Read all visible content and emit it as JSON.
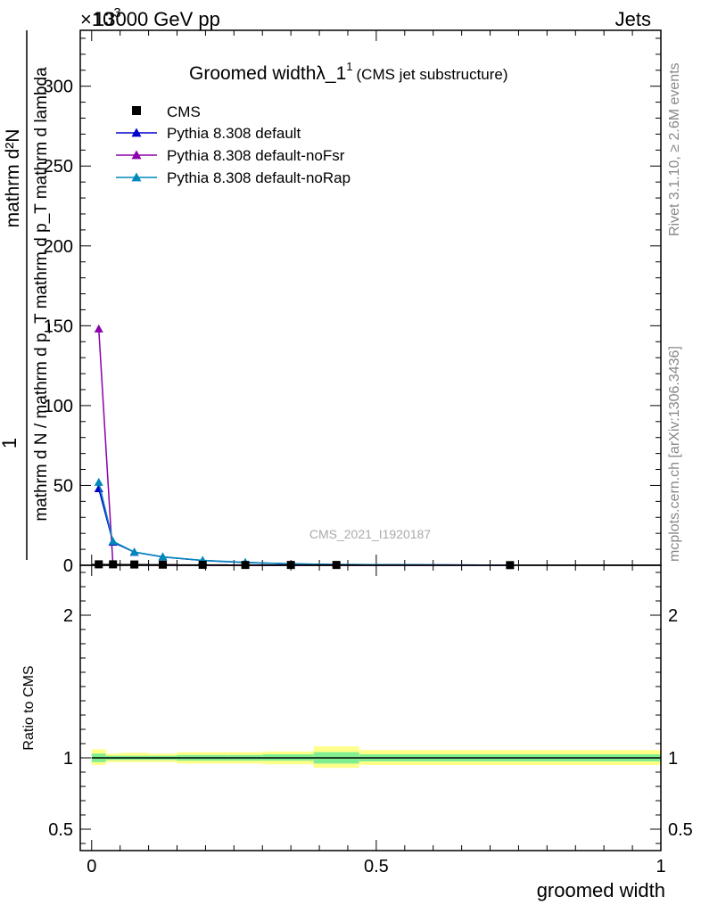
{
  "header": {
    "left": "13000 GeV pp",
    "right": "Jets",
    "exponent_prefix": "×10",
    "exponent_power": "3"
  },
  "side_labels": {
    "rivet": "Rivet 3.1.10, ≥ 2.6M events",
    "mcplots": "mcplots.cern.ch [arXiv:1306.3436]"
  },
  "chart_data": [
    {
      "type": "line",
      "panel": "main",
      "title": "Groomed widthλ_1",
      "title_sup": "1",
      "subtitle": "(CMS jet substructure)",
      "watermark": "CMS_2021_I1920187",
      "ylabel_top": "1",
      "ylabel_numerator": "mathrm d²N",
      "ylabel_denominator": "mathrm d N / mathrm d p_T mathrm d p_T mathrm d lambda",
      "ylim": [
        0,
        335
      ],
      "yticks": [
        0,
        50,
        100,
        150,
        200,
        250,
        300
      ],
      "ytick_labels": [
        "0",
        "50",
        "100",
        "150",
        "200",
        "250",
        "300"
      ],
      "xlim": [
        -0.02,
        1.0
      ],
      "legend_placement": "top-left",
      "cms": {
        "name": "CMS",
        "color": "#000000",
        "points": [
          {
            "x": 0.0125,
            "y": 0.6,
            "xlo": 0.0,
            "xhi": 0.025
          },
          {
            "x": 0.0375,
            "y": 0.6,
            "xlo": 0.025,
            "xhi": 0.05
          },
          {
            "x": 0.075,
            "y": 0.5,
            "xlo": 0.05,
            "xhi": 0.1
          },
          {
            "x": 0.125,
            "y": 0.4,
            "xlo": 0.1,
            "xhi": 0.15
          },
          {
            "x": 0.195,
            "y": 0.3,
            "xlo": 0.15,
            "xhi": 0.24
          },
          {
            "x": 0.27,
            "y": 0.2,
            "xlo": 0.24,
            "xhi": 0.3
          },
          {
            "x": 0.35,
            "y": 0.2,
            "xlo": 0.3,
            "xhi": 0.39
          },
          {
            "x": 0.43,
            "y": 0.2,
            "xlo": 0.39,
            "xhi": 0.47
          },
          {
            "x": 0.735,
            "y": 0.1,
            "xlo": 0.47,
            "xhi": 1.0
          }
        ]
      },
      "series": [
        {
          "name": "Pythia 8.308 default",
          "color": "#0000cc",
          "x": [
            0.0125,
            0.0375,
            0.075,
            0.125,
            0.195,
            0.27,
            0.35,
            0.43,
            0.735
          ],
          "y": [
            48,
            14.5,
            8.2,
            5.2,
            3.0,
            1.7,
            0.9,
            0.5,
            0.1
          ]
        },
        {
          "name": "Pythia 8.308 default-noFsr",
          "color": "#8b00aa",
          "x": [
            0.0125,
            0.0375,
            0.075,
            0.125,
            0.195,
            0.27,
            0.35,
            0.43,
            0.735
          ],
          "y": [
            148,
            0.3,
            0.1,
            0.05,
            0.02,
            0.01,
            0.0,
            0.0,
            0.0
          ]
        },
        {
          "name": "Pythia 8.308 default-noRap",
          "color": "#0088bb",
          "x": [
            0.0125,
            0.0375,
            0.075,
            0.125,
            0.195,
            0.27,
            0.35,
            0.43,
            0.735
          ],
          "y": [
            52,
            15,
            8.3,
            5.3,
            3.1,
            1.8,
            0.9,
            0.5,
            0.1
          ]
        }
      ]
    },
    {
      "type": "area",
      "panel": "ratio",
      "ylabel": "Ratio to CMS",
      "ylim": [
        0.35,
        2.35
      ],
      "yticks": [
        0.5,
        1,
        2
      ],
      "ytick_labels": [
        "0.5",
        "1",
        "2"
      ],
      "xlabel": "groomed width",
      "xlim": [
        -0.02,
        1.0
      ],
      "xticks": [
        0,
        0.5,
        1
      ],
      "xtick_labels": [
        "0",
        "0.5",
        "1"
      ],
      "ratio_line": 1.0,
      "bands": [
        {
          "xlo": 0.0,
          "xhi": 0.025,
          "inner": [
            0.97,
            1.03
          ],
          "outer": [
            0.95,
            1.06
          ]
        },
        {
          "xlo": 0.025,
          "xhi": 0.05,
          "inner": [
            0.985,
            1.015
          ],
          "outer": [
            0.97,
            1.03
          ]
        },
        {
          "xlo": 0.05,
          "xhi": 0.1,
          "inner": [
            0.985,
            1.015
          ],
          "outer": [
            0.97,
            1.035
          ]
        },
        {
          "xlo": 0.1,
          "xhi": 0.15,
          "inner": [
            0.985,
            1.015
          ],
          "outer": [
            0.97,
            1.03
          ]
        },
        {
          "xlo": 0.15,
          "xhi": 0.24,
          "inner": [
            0.98,
            1.02
          ],
          "outer": [
            0.96,
            1.04
          ]
        },
        {
          "xlo": 0.24,
          "xhi": 0.3,
          "inner": [
            0.98,
            1.02
          ],
          "outer": [
            0.96,
            1.04
          ]
        },
        {
          "xlo": 0.3,
          "xhi": 0.39,
          "inner": [
            0.98,
            1.025
          ],
          "outer": [
            0.955,
            1.045
          ]
        },
        {
          "xlo": 0.39,
          "xhi": 0.47,
          "inner": [
            0.96,
            1.04
          ],
          "outer": [
            0.93,
            1.08
          ]
        },
        {
          "xlo": 0.47,
          "xhi": 1.0,
          "inner": [
            0.975,
            1.025
          ],
          "outer": [
            0.95,
            1.055
          ]
        }
      ],
      "band_colors": {
        "inner": "#80ee90",
        "outer": "#ffff88"
      }
    }
  ]
}
